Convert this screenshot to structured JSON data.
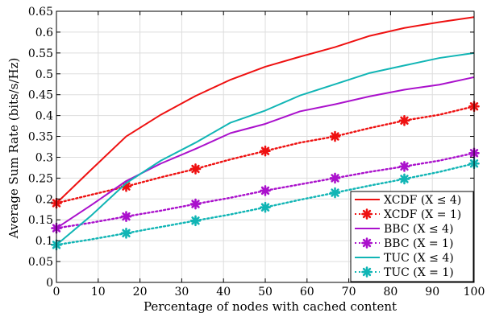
{
  "chart_data": {
    "type": "line",
    "title": "",
    "xlabel": "Percentage of nodes with cached content",
    "ylabel": "Average Sum Rate (bits/s/Hz)",
    "xlim": [
      0,
      100
    ],
    "ylim": [
      0,
      0.65
    ],
    "xticks": [
      0,
      10,
      20,
      30,
      40,
      50,
      60,
      70,
      80,
      90,
      100
    ],
    "yticks": [
      0,
      0.05,
      0.1,
      0.15,
      0.2,
      0.25,
      0.3,
      0.35,
      0.4,
      0.45,
      0.5,
      0.55,
      0.6,
      0.65
    ],
    "xtick_labels": [
      "0",
      "10",
      "20",
      "30",
      "40",
      "50",
      "60",
      "70",
      "80",
      "90",
      "100"
    ],
    "ytick_labels": [
      "0",
      "0.05",
      "0.1",
      "0.15",
      "0.2",
      "0.25",
      "0.3",
      "0.35",
      "0.4",
      "0.45",
      "0.5",
      "0.55",
      "0.6",
      "0.65"
    ],
    "grid": true,
    "legend_position": "lower-right",
    "series": [
      {
        "name": "XCDF (X ≤ 4)",
        "color": "#ee1111",
        "style": "solid",
        "marker": "none",
        "x": [
          0,
          8.3,
          16.7,
          25,
          33.3,
          41.7,
          50,
          58.3,
          66.7,
          75,
          83.3,
          91.7,
          100
        ],
        "y": [
          0.19,
          0.27,
          0.35,
          0.402,
          0.447,
          0.486,
          0.517,
          0.541,
          0.564,
          0.591,
          0.61,
          0.624,
          0.636
        ]
      },
      {
        "name": "XCDF (X = 1)",
        "color": "#ee1111",
        "style": "dotted",
        "marker": "asterisk",
        "x": [
          0,
          8.3,
          16.7,
          25,
          33.3,
          41.7,
          50,
          58.3,
          66.7,
          75,
          83.3,
          91.7,
          100
        ],
        "y": [
          0.19,
          0.21,
          0.23,
          0.252,
          0.272,
          0.295,
          0.315,
          0.335,
          0.35,
          0.37,
          0.388,
          0.402,
          0.422
        ]
      },
      {
        "name": "BBC (X ≤ 4)",
        "color": "#aa11cc",
        "style": "solid",
        "marker": "none",
        "x": [
          0,
          8.3,
          16.7,
          25,
          33.3,
          41.7,
          50,
          58.3,
          66.7,
          75,
          83.3,
          91.7,
          100
        ],
        "y": [
          0.13,
          0.185,
          0.243,
          0.285,
          0.32,
          0.358,
          0.38,
          0.41,
          0.427,
          0.446,
          0.462,
          0.474,
          0.492
        ]
      },
      {
        "name": "BBC (X = 1)",
        "color": "#aa11cc",
        "style": "dotted",
        "marker": "asterisk",
        "x": [
          0,
          8.3,
          16.7,
          25,
          33.3,
          41.7,
          50,
          58.3,
          66.7,
          75,
          83.3,
          91.7,
          100
        ],
        "y": [
          0.13,
          0.143,
          0.158,
          0.172,
          0.188,
          0.203,
          0.22,
          0.235,
          0.25,
          0.265,
          0.278,
          0.292,
          0.31
        ]
      },
      {
        "name": "TUC (X ≤ 4)",
        "color": "#11b5b5",
        "style": "solid",
        "marker": "none",
        "x": [
          0,
          8.3,
          16.7,
          25,
          33.3,
          41.7,
          50,
          58.3,
          66.7,
          75,
          83.3,
          91.7,
          100
        ],
        "y": [
          0.09,
          0.16,
          0.238,
          0.292,
          0.335,
          0.383,
          0.412,
          0.448,
          0.475,
          0.502,
          0.52,
          0.538,
          0.55
        ]
      },
      {
        "name": "TUC (X = 1)",
        "color": "#11b5b5",
        "style": "dotted",
        "marker": "asterisk",
        "x": [
          0,
          8.3,
          16.7,
          25,
          33.3,
          41.7,
          50,
          58.3,
          66.7,
          75,
          83.3,
          91.7,
          100
        ],
        "y": [
          0.09,
          0.103,
          0.118,
          0.133,
          0.148,
          0.163,
          0.18,
          0.198,
          0.215,
          0.232,
          0.248,
          0.265,
          0.285
        ]
      }
    ]
  }
}
